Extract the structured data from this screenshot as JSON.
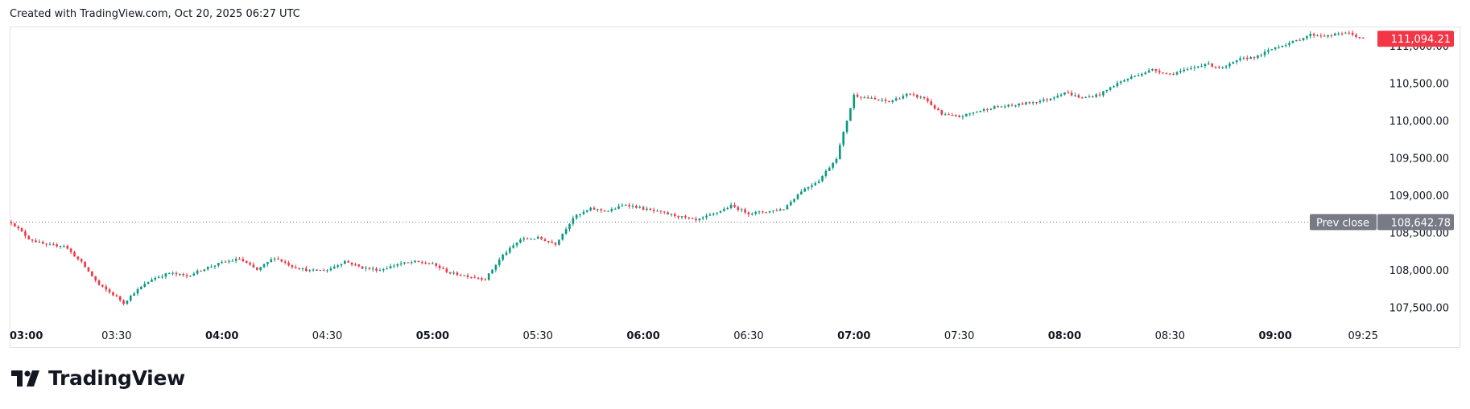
{
  "header": {
    "text": "Created with TradingView.com, Oct 20, 2025 06:27 UTC"
  },
  "branding": {
    "logo_text": "TradingView",
    "logo_icon": "tradingview-logo-icon"
  },
  "colors": {
    "up": "#089981",
    "down": "#f23645",
    "grid_text": "#131722",
    "prev_close_bg": "#787b86"
  },
  "chart_data": {
    "type": "candlestick",
    "title": "",
    "x_ticks": [
      {
        "label": "03:00",
        "bold": true,
        "t": 0
      },
      {
        "label": "03:30",
        "bold": false,
        "t": 30
      },
      {
        "label": "04:00",
        "bold": true,
        "t": 60
      },
      {
        "label": "04:30",
        "bold": false,
        "t": 90
      },
      {
        "label": "05:00",
        "bold": true,
        "t": 120
      },
      {
        "label": "05:30",
        "bold": false,
        "t": 150
      },
      {
        "label": "06:00",
        "bold": true,
        "t": 180
      },
      {
        "label": "06:30",
        "bold": false,
        "t": 210
      },
      {
        "label": "07:00",
        "bold": true,
        "t": 240
      },
      {
        "label": "07:30",
        "bold": false,
        "t": 270
      },
      {
        "label": "08:00",
        "bold": true,
        "t": 300
      },
      {
        "label": "08:30",
        "bold": false,
        "t": 330
      },
      {
        "label": "09:00",
        "bold": true,
        "t": 360
      },
      {
        "label": "09:25",
        "bold": false,
        "t": 385
      }
    ],
    "y_ticks": [
      "107,500.00",
      "108,000.00",
      "108,500.00",
      "109,000.00",
      "109,500.00",
      "110,000.00",
      "110,500.00",
      "111,000.00"
    ],
    "y_tick_values": [
      107500,
      108000,
      108500,
      109000,
      109500,
      110000,
      110500,
      111000
    ],
    "y_range": [
      107260,
      111290
    ],
    "x_range_minutes": [
      0,
      390
    ],
    "last_price": {
      "label": "111,094.21",
      "value": 111094.21
    },
    "prev_close": {
      "label": "Prev close",
      "value_label": "108,642.78",
      "value": 108642.78
    },
    "anchors": [
      [
        0,
        108640
      ],
      [
        5,
        108420
      ],
      [
        10,
        108330
      ],
      [
        15,
        108330
      ],
      [
        20,
        108100
      ],
      [
        25,
        107800
      ],
      [
        30,
        107640
      ],
      [
        32,
        107560
      ],
      [
        35,
        107700
      ],
      [
        40,
        107880
      ],
      [
        45,
        107960
      ],
      [
        50,
        107920
      ],
      [
        55,
        108020
      ],
      [
        60,
        108100
      ],
      [
        65,
        108150
      ],
      [
        70,
        108000
      ],
      [
        75,
        108170
      ],
      [
        80,
        108050
      ],
      [
        85,
        107990
      ],
      [
        90,
        108000
      ],
      [
        95,
        108120
      ],
      [
        100,
        108030
      ],
      [
        105,
        108000
      ],
      [
        110,
        108080
      ],
      [
        115,
        108110
      ],
      [
        120,
        108080
      ],
      [
        125,
        107960
      ],
      [
        130,
        107920
      ],
      [
        135,
        107880
      ],
      [
        140,
        108200
      ],
      [
        145,
        108410
      ],
      [
        150,
        108430
      ],
      [
        155,
        108350
      ],
      [
        160,
        108700
      ],
      [
        165,
        108820
      ],
      [
        170,
        108790
      ],
      [
        175,
        108880
      ],
      [
        180,
        108820
      ],
      [
        185,
        108770
      ],
      [
        190,
        108720
      ],
      [
        195,
        108660
      ],
      [
        200,
        108750
      ],
      [
        205,
        108860
      ],
      [
        210,
        108760
      ],
      [
        215,
        108780
      ],
      [
        220,
        108820
      ],
      [
        225,
        109060
      ],
      [
        230,
        109200
      ],
      [
        235,
        109500
      ],
      [
        240,
        110340
      ],
      [
        245,
        110290
      ],
      [
        250,
        110250
      ],
      [
        255,
        110350
      ],
      [
        260,
        110300
      ],
      [
        265,
        110080
      ],
      [
        270,
        110050
      ],
      [
        275,
        110120
      ],
      [
        280,
        110180
      ],
      [
        285,
        110200
      ],
      [
        290,
        110240
      ],
      [
        295,
        110280
      ],
      [
        300,
        110380
      ],
      [
        305,
        110300
      ],
      [
        310,
        110350
      ],
      [
        315,
        110500
      ],
      [
        320,
        110600
      ],
      [
        325,
        110680
      ],
      [
        330,
        110620
      ],
      [
        335,
        110680
      ],
      [
        340,
        110760
      ],
      [
        345,
        110700
      ],
      [
        350,
        110820
      ],
      [
        355,
        110860
      ],
      [
        360,
        110980
      ],
      [
        365,
        111050
      ],
      [
        370,
        111150
      ],
      [
        375,
        111130
      ],
      [
        380,
        111180
      ],
      [
        385,
        111094.21
      ]
    ]
  }
}
